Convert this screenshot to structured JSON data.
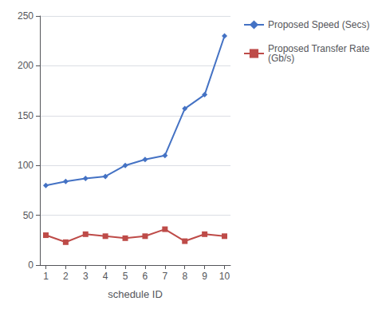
{
  "chart_data": {
    "type": "line",
    "xlabel": "schedule ID",
    "x": [
      1,
      2,
      3,
      4,
      5,
      6,
      7,
      8,
      9,
      10
    ],
    "series": [
      {
        "name": "Proposed Speed (Secs)",
        "color": "#4472C4",
        "marker": "diamond",
        "values": [
          80,
          84,
          87,
          89,
          100,
          106,
          110,
          157,
          171,
          230
        ]
      },
      {
        "name": "Proposed Transfer Rate\n(Gb/s)",
        "color": "#BE4B48",
        "marker": "square",
        "values": [
          30,
          23,
          31,
          29,
          27,
          29,
          36,
          24,
          31,
          29
        ]
      }
    ],
    "xlim": [
      0.7,
      10.3
    ],
    "xticks": [
      1,
      2,
      3,
      4,
      5,
      6,
      7,
      8,
      9,
      10
    ],
    "ylim": [
      0,
      250
    ],
    "yticks": [
      0,
      50,
      100,
      150,
      200,
      250
    ],
    "grid": true,
    "legend": "right"
  }
}
